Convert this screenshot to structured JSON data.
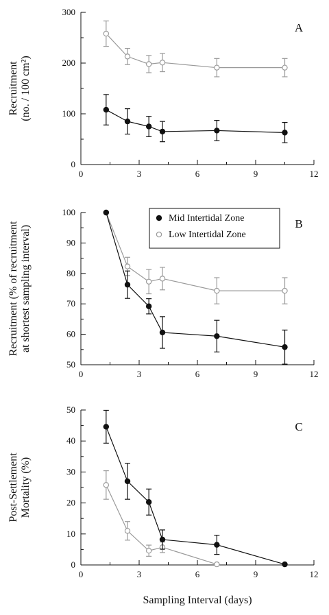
{
  "chart_data": [
    {
      "type": "line",
      "panel_label": "A",
      "ylabel_line1": "Recruitment",
      "ylabel_line2": "(no. / 100 cm²)",
      "xlabel": "",
      "xlim": [
        0,
        12
      ],
      "ylim": [
        0,
        300
      ],
      "xticks": [
        0,
        3,
        6,
        9,
        12
      ],
      "yticks": [
        0,
        100,
        200,
        300
      ],
      "series": [
        {
          "name": "Low Intertidal Zone",
          "marker": "open",
          "color": "#9a9a9a",
          "x": [
            1.3,
            2.4,
            3.5,
            4.2,
            7.0,
            10.5
          ],
          "y": [
            258,
            213,
            198,
            201,
            191,
            191
          ],
          "err": [
            25,
            16,
            17,
            18,
            18,
            18
          ]
        },
        {
          "name": "Mid Intertidal Zone",
          "marker": "filled",
          "color": "#111111",
          "x": [
            1.3,
            2.4,
            3.5,
            4.2,
            7.0,
            10.5
          ],
          "y": [
            108,
            85,
            75,
            65,
            67,
            63
          ],
          "err": [
            30,
            25,
            20,
            20,
            20,
            20
          ]
        }
      ]
    },
    {
      "type": "line",
      "panel_label": "B",
      "ylabel_line1": "Recruitment (% of recruitment",
      "ylabel_line2": "at shortest sampling interval)",
      "xlabel": "",
      "xlim": [
        0,
        12
      ],
      "ylim": [
        50,
        100
      ],
      "xticks": [
        0,
        3,
        6,
        9,
        12
      ],
      "yticks": [
        50,
        60,
        70,
        80,
        90,
        100
      ],
      "legend": [
        "Mid Intertidal Zone",
        "Low Intertidal Zone"
      ],
      "series": [
        {
          "name": "Low Intertidal Zone",
          "marker": "open",
          "color": "#9a9a9a",
          "x": [
            1.3,
            2.4,
            3.5,
            4.2,
            7.0,
            10.5
          ],
          "y": [
            100,
            82.3,
            77.3,
            78.3,
            74.3,
            74.3
          ],
          "err": [
            0,
            3,
            4,
            3.7,
            4.3,
            4.3
          ]
        },
        {
          "name": "Mid Intertidal Zone",
          "marker": "filled",
          "color": "#111111",
          "x": [
            1.3,
            2.4,
            3.5,
            4.2,
            7.0,
            10.5
          ],
          "y": [
            100,
            76.3,
            69.2,
            60.6,
            59.4,
            55.8
          ],
          "err": [
            0,
            4.5,
            2.5,
            5.2,
            5.2,
            5.6
          ]
        }
      ]
    },
    {
      "type": "line",
      "panel_label": "C",
      "ylabel_line1": "Post-Settlement",
      "ylabel_line2": "Mortality (%)",
      "xlabel": "Sampling Interval (days)",
      "xlim": [
        0,
        12
      ],
      "ylim": [
        0,
        50
      ],
      "xticks": [
        0,
        3,
        6,
        9,
        12
      ],
      "yticks": [
        0,
        10,
        20,
        30,
        40,
        50
      ],
      "series": [
        {
          "name": "Low Intertidal Zone",
          "marker": "open",
          "color": "#9a9a9a",
          "x": [
            1.3,
            2.4,
            3.5,
            4.2,
            7.0
          ],
          "y": [
            25.8,
            11.0,
            4.6,
            5.7,
            0.2
          ],
          "err": [
            4.6,
            3.0,
            1.8,
            1.7,
            0
          ]
        },
        {
          "name": "Mid Intertidal Zone",
          "marker": "filled",
          "color": "#111111",
          "x": [
            1.3,
            2.4,
            3.5,
            4.2,
            7.0,
            10.5
          ],
          "y": [
            44.6,
            27.0,
            20.3,
            8.2,
            6.5,
            0.2
          ],
          "err": [
            5.3,
            5.8,
            4.2,
            3.1,
            3.1,
            0
          ]
        }
      ]
    }
  ]
}
